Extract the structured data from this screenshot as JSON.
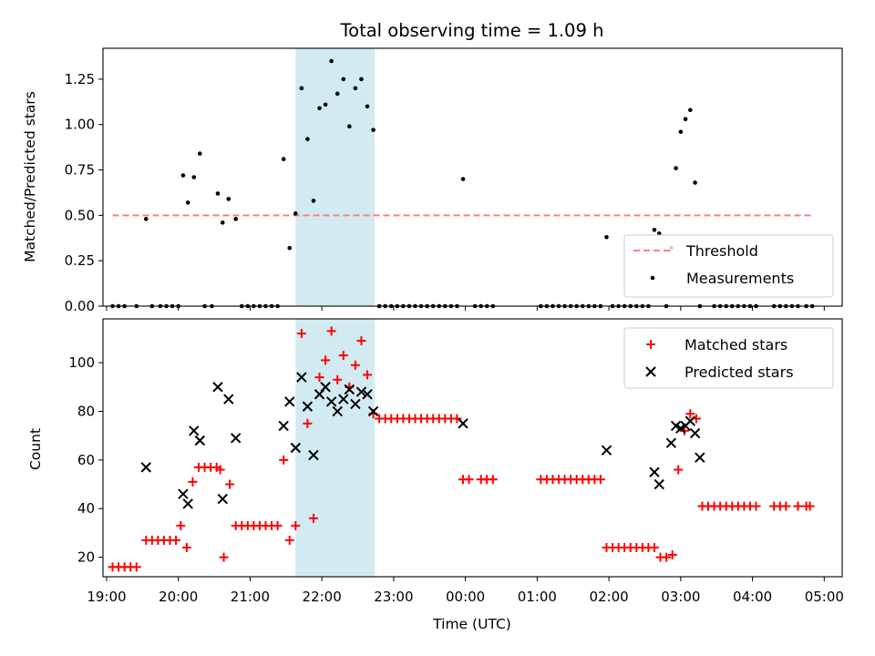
{
  "figure": {
    "title": "Total observing time = 1.09 h",
    "xlabel": "Time (UTC)",
    "x_tick_labels": [
      "19:00",
      "20:00",
      "21:00",
      "22:00",
      "23:00",
      "00:00",
      "01:00",
      "02:00",
      "03:00",
      "04:00",
      "05:00"
    ],
    "highlight_band": {
      "start": "21:38",
      "end": "22:44",
      "color": "#add8e6"
    }
  },
  "chart_data": [
    {
      "type": "scatter",
      "ylabel": "Matched/Predicted stars",
      "xlim": [
        "18:57",
        "05:15"
      ],
      "ylim": [
        0,
        1.42
      ],
      "y_ticks": [
        "0.00",
        "0.25",
        "0.50",
        "0.75",
        "1.00",
        "1.25"
      ],
      "grid": false,
      "legend_position": "lower-right",
      "threshold": {
        "name": "Threshold",
        "value": 0.5,
        "x_range": [
          "19:05",
          "04:50"
        ],
        "color": "#ff7f7f"
      },
      "series": [
        {
          "name": "Measurements",
          "color": "#000000",
          "points": [
            [
              "19:05",
              0
            ],
            [
              "19:10",
              0
            ],
            [
              "19:15",
              0
            ],
            [
              "19:25",
              0
            ],
            [
              "19:33",
              0.48
            ],
            [
              "19:38",
              0
            ],
            [
              "19:45",
              0
            ],
            [
              "19:50",
              0
            ],
            [
              "19:55",
              0
            ],
            [
              "20:00",
              0
            ],
            [
              "20:04",
              0.72
            ],
            [
              "20:08",
              0.57
            ],
            [
              "20:13",
              0.71
            ],
            [
              "20:18",
              0.84
            ],
            [
              "20:22",
              0
            ],
            [
              "20:28",
              0
            ],
            [
              "20:33",
              0.62
            ],
            [
              "20:37",
              0.46
            ],
            [
              "20:42",
              0.59
            ],
            [
              "20:48",
              0.48
            ],
            [
              "20:53",
              0
            ],
            [
              "20:58",
              0
            ],
            [
              "21:03",
              0
            ],
            [
              "21:08",
              0
            ],
            [
              "21:13",
              0
            ],
            [
              "21:18",
              0
            ],
            [
              "21:23",
              0
            ],
            [
              "21:28",
              0.81
            ],
            [
              "21:33",
              0.32
            ],
            [
              "21:38",
              0.51
            ],
            [
              "21:43",
              1.2
            ],
            [
              "21:48",
              0.92
            ],
            [
              "21:53",
              0.58
            ],
            [
              "21:58",
              1.09
            ],
            [
              "22:03",
              1.11
            ],
            [
              "22:08",
              1.35
            ],
            [
              "22:13",
              1.17
            ],
            [
              "22:18",
              1.25
            ],
            [
              "22:23",
              0.99
            ],
            [
              "22:28",
              1.2
            ],
            [
              "22:33",
              1.25
            ],
            [
              "22:38",
              1.1
            ],
            [
              "22:43",
              0.97
            ],
            [
              "22:48",
              0
            ],
            [
              "22:53",
              0
            ],
            [
              "22:58",
              0
            ],
            [
              "23:03",
              0
            ],
            [
              "23:08",
              0
            ],
            [
              "23:13",
              0
            ],
            [
              "23:18",
              0
            ],
            [
              "23:23",
              0
            ],
            [
              "23:28",
              0
            ],
            [
              "23:33",
              0
            ],
            [
              "23:38",
              0
            ],
            [
              "23:43",
              0
            ],
            [
              "23:48",
              0
            ],
            [
              "23:53",
              0
            ],
            [
              "23:58",
              0.7
            ],
            [
              "00:08",
              0
            ],
            [
              "00:13",
              0
            ],
            [
              "00:18",
              0
            ],
            [
              "00:23",
              0
            ],
            [
              "01:03",
              0
            ],
            [
              "01:08",
              0
            ],
            [
              "01:13",
              0
            ],
            [
              "01:18",
              0
            ],
            [
              "01:23",
              0
            ],
            [
              "01:28",
              0
            ],
            [
              "01:33",
              0
            ],
            [
              "01:38",
              0
            ],
            [
              "01:43",
              0
            ],
            [
              "01:48",
              0
            ],
            [
              "01:53",
              0
            ],
            [
              "01:58",
              0.38
            ],
            [
              "02:03",
              0
            ],
            [
              "02:08",
              0
            ],
            [
              "02:13",
              0
            ],
            [
              "02:18",
              0
            ],
            [
              "02:23",
              0
            ],
            [
              "02:28",
              0
            ],
            [
              "02:33",
              0
            ],
            [
              "02:38",
              0.42
            ],
            [
              "02:42",
              0.4
            ],
            [
              "02:48",
              0
            ],
            [
              "02:52",
              0.32
            ],
            [
              "02:56",
              0.76
            ],
            [
              "03:00",
              0.96
            ],
            [
              "03:04",
              1.03
            ],
            [
              "03:08",
              1.08
            ],
            [
              "03:12",
              0.68
            ],
            [
              "03:16",
              0
            ],
            [
              "03:28",
              0
            ],
            [
              "03:33",
              0
            ],
            [
              "03:38",
              0
            ],
            [
              "03:43",
              0
            ],
            [
              "03:48",
              0
            ],
            [
              "03:53",
              0
            ],
            [
              "03:58",
              0
            ],
            [
              "04:03",
              0
            ],
            [
              "04:18",
              0
            ],
            [
              "04:23",
              0
            ],
            [
              "04:28",
              0
            ],
            [
              "04:33",
              0
            ],
            [
              "04:38",
              0
            ],
            [
              "04:45",
              0
            ],
            [
              "04:50",
              0
            ]
          ]
        }
      ]
    },
    {
      "type": "scatter",
      "ylabel": "Count",
      "xlim": [
        "18:57",
        "05:15"
      ],
      "ylim": [
        12,
        118
      ],
      "y_ticks": [
        "20",
        "40",
        "60",
        "80",
        "100"
      ],
      "grid": false,
      "legend_position": "upper-right",
      "series": [
        {
          "name": "Matched stars",
          "marker": "plus",
          "color": "#ff0000",
          "points": [
            [
              "19:05",
              16
            ],
            [
              "19:10",
              16
            ],
            [
              "19:15",
              16
            ],
            [
              "19:20",
              16
            ],
            [
              "19:25",
              16
            ],
            [
              "19:33",
              27
            ],
            [
              "19:38",
              27
            ],
            [
              "19:43",
              27
            ],
            [
              "19:48",
              27
            ],
            [
              "19:53",
              27
            ],
            [
              "19:58",
              27
            ],
            [
              "20:02",
              33
            ],
            [
              "20:07",
              24
            ],
            [
              "20:12",
              51
            ],
            [
              "20:17",
              57
            ],
            [
              "20:22",
              57
            ],
            [
              "20:27",
              57
            ],
            [
              "20:32",
              57
            ],
            [
              "20:35",
              56
            ],
            [
              "20:38",
              20
            ],
            [
              "20:43",
              50
            ],
            [
              "20:48",
              33
            ],
            [
              "20:53",
              33
            ],
            [
              "20:58",
              33
            ],
            [
              "21:03",
              33
            ],
            [
              "21:08",
              33
            ],
            [
              "21:13",
              33
            ],
            [
              "21:18",
              33
            ],
            [
              "21:23",
              33
            ],
            [
              "21:28",
              60
            ],
            [
              "21:33",
              27
            ],
            [
              "21:38",
              33
            ],
            [
              "21:43",
              112
            ],
            [
              "21:48",
              75
            ],
            [
              "21:53",
              36
            ],
            [
              "21:58",
              94
            ],
            [
              "22:03",
              101
            ],
            [
              "22:08",
              113
            ],
            [
              "22:13",
              93
            ],
            [
              "22:18",
              103
            ],
            [
              "22:23",
              90
            ],
            [
              "22:28",
              99
            ],
            [
              "22:33",
              109
            ],
            [
              "22:38",
              95
            ],
            [
              "22:43",
              79
            ],
            [
              "22:48",
              77
            ],
            [
              "22:53",
              77
            ],
            [
              "22:58",
              77
            ],
            [
              "23:03",
              77
            ],
            [
              "23:08",
              77
            ],
            [
              "23:13",
              77
            ],
            [
              "23:18",
              77
            ],
            [
              "23:23",
              77
            ],
            [
              "23:28",
              77
            ],
            [
              "23:33",
              77
            ],
            [
              "23:38",
              77
            ],
            [
              "23:43",
              77
            ],
            [
              "23:48",
              77
            ],
            [
              "23:53",
              77
            ],
            [
              "23:58",
              52
            ],
            [
              "00:03",
              52
            ],
            [
              "00:13",
              52
            ],
            [
              "00:18",
              52
            ],
            [
              "00:23",
              52
            ],
            [
              "01:03",
              52
            ],
            [
              "01:08",
              52
            ],
            [
              "01:13",
              52
            ],
            [
              "01:18",
              52
            ],
            [
              "01:23",
              52
            ],
            [
              "01:28",
              52
            ],
            [
              "01:33",
              52
            ],
            [
              "01:38",
              52
            ],
            [
              "01:43",
              52
            ],
            [
              "01:48",
              52
            ],
            [
              "01:53",
              52
            ],
            [
              "01:58",
              24
            ],
            [
              "02:03",
              24
            ],
            [
              "02:08",
              24
            ],
            [
              "02:13",
              24
            ],
            [
              "02:18",
              24
            ],
            [
              "02:23",
              24
            ],
            [
              "02:28",
              24
            ],
            [
              "02:33",
              24
            ],
            [
              "02:38",
              24
            ],
            [
              "02:43",
              20
            ],
            [
              "02:48",
              20
            ],
            [
              "02:53",
              21
            ],
            [
              "02:58",
              56
            ],
            [
              "03:03",
              72
            ],
            [
              "03:08",
              79
            ],
            [
              "03:13",
              77
            ],
            [
              "03:18",
              41
            ],
            [
              "03:23",
              41
            ],
            [
              "03:28",
              41
            ],
            [
              "03:33",
              41
            ],
            [
              "03:38",
              41
            ],
            [
              "03:43",
              41
            ],
            [
              "03:48",
              41
            ],
            [
              "03:53",
              41
            ],
            [
              "03:58",
              41
            ],
            [
              "04:03",
              41
            ],
            [
              "04:18",
              41
            ],
            [
              "04:23",
              41
            ],
            [
              "04:28",
              41
            ],
            [
              "04:38",
              41
            ],
            [
              "04:45",
              41
            ],
            [
              "04:48",
              41
            ]
          ]
        },
        {
          "name": "Predicted stars",
          "marker": "x",
          "color": "#000000",
          "points": [
            [
              "19:33",
              57
            ],
            [
              "20:04",
              46
            ],
            [
              "20:08",
              42
            ],
            [
              "20:13",
              72
            ],
            [
              "20:18",
              68
            ],
            [
              "20:33",
              90
            ],
            [
              "20:37",
              44
            ],
            [
              "20:42",
              85
            ],
            [
              "20:48",
              69
            ],
            [
              "21:28",
              74
            ],
            [
              "21:33",
              84
            ],
            [
              "21:38",
              65
            ],
            [
              "21:43",
              94
            ],
            [
              "21:48",
              82
            ],
            [
              "21:53",
              62
            ],
            [
              "21:58",
              87
            ],
            [
              "22:03",
              90
            ],
            [
              "22:08",
              84
            ],
            [
              "22:13",
              80
            ],
            [
              "22:18",
              85
            ],
            [
              "22:23",
              89
            ],
            [
              "22:28",
              83
            ],
            [
              "22:33",
              88
            ],
            [
              "22:38",
              87
            ],
            [
              "22:43",
              80
            ],
            [
              "23:58",
              75
            ],
            [
              "01:58",
              64
            ],
            [
              "02:38",
              55
            ],
            [
              "02:42",
              50
            ],
            [
              "02:52",
              67
            ],
            [
              "02:56",
              74
            ],
            [
              "03:00",
              73
            ],
            [
              "03:04",
              74
            ],
            [
              "03:08",
              76
            ],
            [
              "03:12",
              71
            ],
            [
              "03:16",
              61
            ]
          ]
        }
      ]
    }
  ]
}
